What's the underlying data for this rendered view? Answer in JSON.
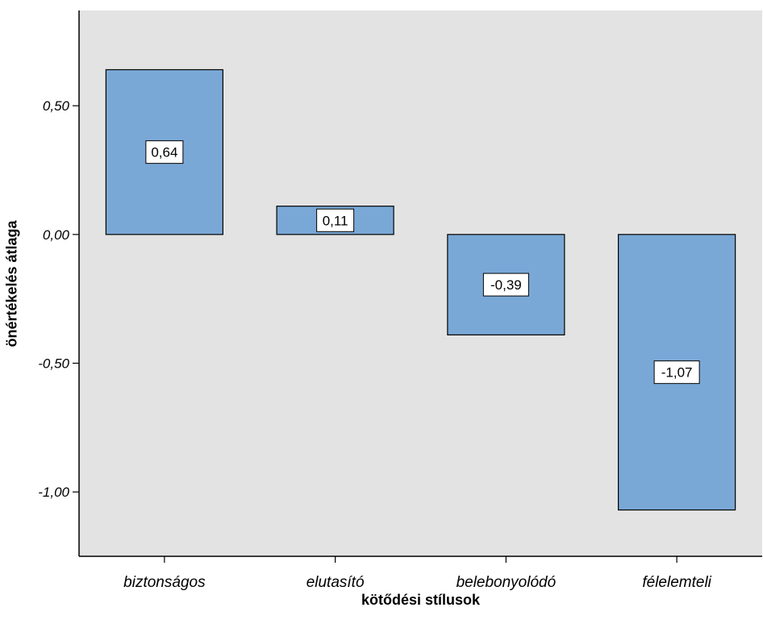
{
  "chart_data": {
    "type": "bar",
    "categories": [
      "biztonságos",
      "elutasító",
      "belebonyolódó",
      "félelemteli"
    ],
    "values": [
      0.64,
      0.11,
      -0.39,
      -1.07
    ],
    "data_labels": [
      "0,64",
      "0,11",
      "-0,39",
      "-1,07"
    ],
    "xlabel": "kötődési stílusok",
    "ylabel": "önértékelés átlaga",
    "ylim": [
      -1.25,
      0.87
    ],
    "yticks": [
      0.5,
      0.0,
      -0.5,
      -1.0
    ],
    "ytick_labels": [
      "0,50",
      "0,00",
      "-0,50",
      "-1,00"
    ],
    "grid": false,
    "legend": "none"
  },
  "colors": {
    "plot_background": "#e3e3e3",
    "bar_fill": "#7aa8d6",
    "bar_stroke": "#000000",
    "label_box": "#ffffff"
  }
}
